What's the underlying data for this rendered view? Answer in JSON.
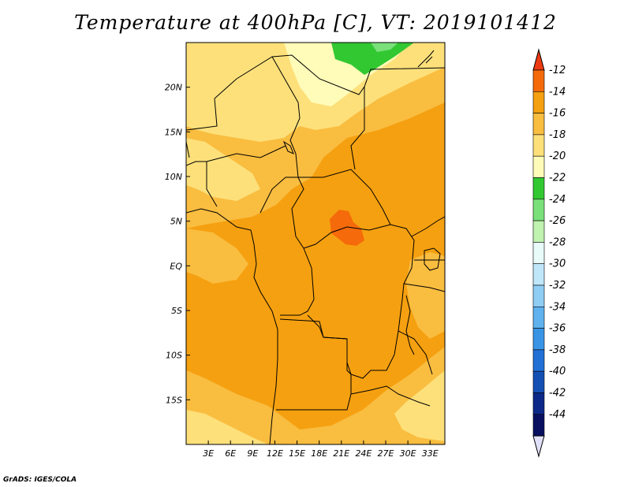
{
  "title": "Temperature at 400hPa [C], VT: 2019101412",
  "credit": "GrADS: IGES/COLA",
  "lat_labels": [
    "20N",
    "15N",
    "10N",
    "5N",
    "EQ",
    "5S",
    "10S",
    "15S"
  ],
  "lat_values": [
    20,
    15,
    10,
    5,
    0,
    -5,
    -10,
    -15
  ],
  "lon_labels": [
    "3E",
    "6E",
    "9E",
    "12E",
    "15E",
    "18E",
    "21E",
    "24E",
    "27E",
    "30E",
    "33E"
  ],
  "lon_values": [
    3,
    6,
    9,
    12,
    15,
    18,
    21,
    24,
    27,
    30,
    33
  ],
  "map_extent": {
    "lon_min": 0,
    "lon_max": 35,
    "lat_min": -20,
    "lat_max": 25
  },
  "colorbar": {
    "labels": [
      "-12",
      "-14",
      "-16",
      "-18",
      "-20",
      "-22",
      "-24",
      "-26",
      "-28",
      "-30",
      "-32",
      "-34",
      "-36",
      "-38",
      "-40",
      "-42",
      "-44"
    ],
    "colors": [
      "#ee3a12",
      "#f56a0a",
      "#f5a010",
      "#f9bd40",
      "#fde07a",
      "#fffbb8",
      "#32c832",
      "#7ae07a",
      "#c0f2b0",
      "#e8fbf8",
      "#c0e6fa",
      "#90cdf5",
      "#5fb2ee",
      "#3a94e6",
      "#2070d6",
      "#1450b4",
      "#0c2888",
      "#071060",
      "#e0e0f8"
    ]
  },
  "field_colors": {
    "orange_main": "#f5a010",
    "orange_light": "#f9bd40",
    "yellow": "#fde07a",
    "pale_yellow": "#fffbb8",
    "green": "#32c832",
    "light_green": "#7ae07a",
    "red_orange": "#f56a0a"
  }
}
